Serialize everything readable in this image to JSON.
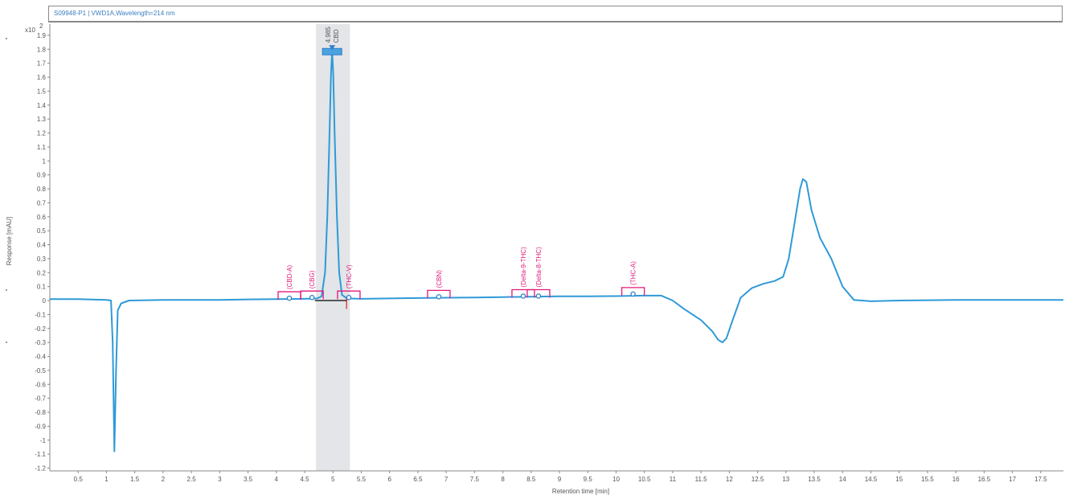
{
  "chart_title": "S09948-P1 | VWD1A,Wavelength=214 nm",
  "chart_data": {
    "type": "line",
    "title": "S09948-P1 | VWD1A,Wavelength=214 nm",
    "xlabel": "Retention time [min]",
    "ylabel": "Response [mAU]",
    "y_multiplier_label": "x10",
    "y_multiplier_exp": "2",
    "xlim": [
      0,
      17.9
    ],
    "ylim": [
      -1.22,
      1.98
    ],
    "x_ticks": [
      "0.5",
      "1",
      "1.5",
      "2",
      "2.5",
      "3",
      "3.5",
      "4",
      "4.5",
      "5",
      "5.5",
      "6",
      "6.5",
      "7",
      "7.5",
      "8",
      "8.5",
      "9",
      "9.5",
      "10",
      "10.5",
      "11",
      "11.5",
      "12",
      "12.5",
      "13",
      "13.5",
      "14",
      "14.5",
      "15",
      "15.5",
      "16",
      "16.5",
      "17",
      "17.5"
    ],
    "y_ticks": [
      "1.9",
      "1.8",
      "1.7",
      "1.6",
      "1.5",
      "1.4",
      "1.3",
      "1.2",
      "1.1",
      "1",
      "0.9",
      "0.8",
      "0.7",
      "0.6",
      "0.5",
      "0.4",
      "0.3",
      "0.2",
      "0.1",
      "0",
      "-0.1",
      "-0.2",
      "-0.3",
      "-0.4",
      "-0.5",
      "-0.6",
      "-0.7",
      "-0.8",
      "-0.9",
      "-1",
      "-1.1",
      "-1.2"
    ],
    "grid": false,
    "series": [
      {
        "color": "#2f9ad8",
        "points": [
          [
            0.0,
            0.01
          ],
          [
            0.5,
            0.01
          ],
          [
            1.0,
            0.005
          ],
          [
            1.08,
            0.0
          ],
          [
            1.11,
            -0.3
          ],
          [
            1.14,
            -1.08
          ],
          [
            1.17,
            -0.5
          ],
          [
            1.2,
            -0.07
          ],
          [
            1.26,
            -0.02
          ],
          [
            1.4,
            0.0
          ],
          [
            2.0,
            0.005
          ],
          [
            3.0,
            0.005
          ],
          [
            3.5,
            0.008
          ],
          [
            4.0,
            0.01
          ],
          [
            4.5,
            0.012
          ],
          [
            4.72,
            0.015
          ],
          [
            4.8,
            0.03
          ],
          [
            4.86,
            0.2
          ],
          [
            4.9,
            0.6
          ],
          [
            4.94,
            1.2
          ],
          [
            4.965,
            1.62
          ],
          [
            4.985,
            1.79
          ],
          [
            5.005,
            1.62
          ],
          [
            5.03,
            1.2
          ],
          [
            5.07,
            0.6
          ],
          [
            5.11,
            0.2
          ],
          [
            5.16,
            0.04
          ],
          [
            5.25,
            0.015
          ],
          [
            5.5,
            0.012
          ],
          [
            6.0,
            0.015
          ],
          [
            6.5,
            0.018
          ],
          [
            7.0,
            0.02
          ],
          [
            7.5,
            0.022
          ],
          [
            8.0,
            0.025
          ],
          [
            8.5,
            0.028
          ],
          [
            9.0,
            0.03
          ],
          [
            9.5,
            0.03
          ],
          [
            10.0,
            0.032
          ],
          [
            10.5,
            0.035
          ],
          [
            10.8,
            0.035
          ],
          [
            11.0,
            0.0
          ],
          [
            11.2,
            -0.06
          ],
          [
            11.5,
            -0.14
          ],
          [
            11.7,
            -0.22
          ],
          [
            11.8,
            -0.28
          ],
          [
            11.88,
            -0.3
          ],
          [
            11.95,
            -0.27
          ],
          [
            12.05,
            -0.15
          ],
          [
            12.2,
            0.02
          ],
          [
            12.4,
            0.09
          ],
          [
            12.6,
            0.12
          ],
          [
            12.8,
            0.14
          ],
          [
            12.95,
            0.17
          ],
          [
            13.05,
            0.3
          ],
          [
            13.15,
            0.55
          ],
          [
            13.25,
            0.8
          ],
          [
            13.3,
            0.87
          ],
          [
            13.36,
            0.85
          ],
          [
            13.45,
            0.65
          ],
          [
            13.6,
            0.45
          ],
          [
            13.8,
            0.3
          ],
          [
            14.0,
            0.1
          ],
          [
            14.2,
            0.005
          ],
          [
            14.5,
            -0.005
          ],
          [
            15.0,
            0.0
          ],
          [
            16.0,
            0.005
          ],
          [
            17.0,
            0.005
          ],
          [
            17.9,
            0.005
          ]
        ]
      }
    ],
    "highlight_band": {
      "x_start": 4.7,
      "x_end": 5.3,
      "color": "#e3e5e8"
    },
    "main_peak": {
      "x": 4.985,
      "y": 1.8,
      "rt_label": "4.985",
      "name_label": "CBD"
    },
    "expected_peaks": [
      {
        "label": "(CBD-A)",
        "x": 4.23,
        "y": 0.04
      },
      {
        "label": "(CBG)",
        "x": 4.63,
        "y": 0.045
      },
      {
        "label": "(THC-V)",
        "x": 5.28,
        "y": 0.045
      },
      {
        "label": "(CBN)",
        "x": 6.87,
        "y": 0.05
      },
      {
        "label": "(Delta-9-THC)",
        "x": 8.36,
        "y": 0.055
      },
      {
        "label": "(Delta-8-THC)",
        "x": 8.63,
        "y": 0.055
      },
      {
        "label": "(THC-A)",
        "x": 10.3,
        "y": 0.07
      }
    ],
    "colors": {
      "trace": "#2f9ad8",
      "expected_peak": "#e0197d",
      "baseline": "#000000",
      "integration_marker": "#d62020",
      "peak_marker": "#2f7fc9"
    }
  }
}
